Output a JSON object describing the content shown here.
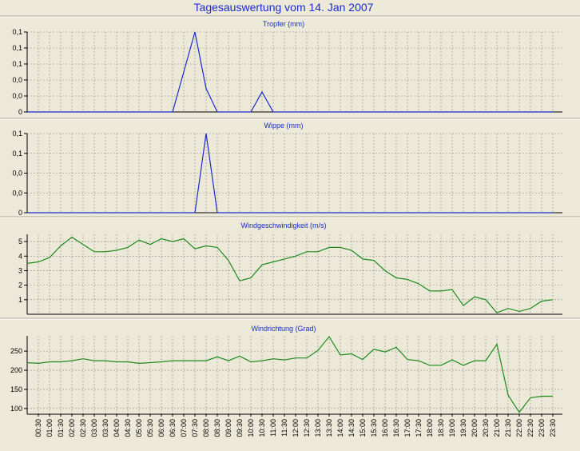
{
  "page": {
    "title": "Tagesauswertung vom 14. Jan 2007"
  },
  "colors": {
    "background": "#ece9d8",
    "title_text": "#1a2ccc",
    "grid": "#8a8a8a",
    "rain_line": "#1a2ccc",
    "wind_line": "#1f8a1f"
  },
  "time_labels": [
    "00:30",
    "01:00",
    "01:30",
    "02:00",
    "02:30",
    "03:00",
    "03:30",
    "04:00",
    "04:30",
    "05:00",
    "05:30",
    "06:00",
    "06:30",
    "07:00",
    "07:30",
    "08:00",
    "08:30",
    "09:00",
    "09:30",
    "10:00",
    "10:30",
    "11:00",
    "11:30",
    "12:00",
    "12:30",
    "13:00",
    "13:30",
    "14:00",
    "14:30",
    "15:00",
    "15:30",
    "16:00",
    "16:30",
    "17:00",
    "17:30",
    "18:00",
    "18:30",
    "19:00",
    "19:30",
    "20:00",
    "20:30",
    "21:00",
    "21:30",
    "22:00",
    "22:30",
    "23:00",
    "23:30"
  ],
  "chart_data": [
    {
      "type": "line",
      "title": "Tropfer (mm)",
      "ytick_labels": [
        "0,1",
        "0,1",
        "0,1",
        "0,0",
        "0,0",
        "0"
      ],
      "ylim": [
        0,
        0.12
      ],
      "grid": true,
      "x": [
        "00:00",
        "00:30",
        "01:00",
        "01:30",
        "02:00",
        "02:30",
        "03:00",
        "03:30",
        "04:00",
        "04:30",
        "05:00",
        "05:30",
        "06:00",
        "06:30",
        "07:00",
        "07:30",
        "08:00",
        "08:30",
        "09:00",
        "09:30",
        "10:00",
        "10:30",
        "11:00",
        "11:30",
        "12:00",
        "12:30",
        "13:00",
        "13:30",
        "14:00",
        "14:30",
        "15:00",
        "15:30",
        "16:00",
        "16:30",
        "17:00",
        "17:30",
        "18:00",
        "18:30",
        "19:00",
        "19:30",
        "20:00",
        "20:30",
        "21:00",
        "21:30",
        "22:00",
        "22:30",
        "23:00",
        "23:30"
      ],
      "series": [
        {
          "values": [
            0,
            0,
            0,
            0,
            0,
            0,
            0,
            0,
            0,
            0,
            0,
            0,
            0,
            0,
            0.06,
            0.12,
            0.035,
            0,
            0,
            0,
            0,
            0.03,
            0,
            0,
            0,
            0,
            0,
            0,
            0,
            0,
            0,
            0,
            0,
            0,
            0,
            0,
            0,
            0,
            0,
            0,
            0,
            0,
            0,
            0,
            0,
            0,
            0,
            0
          ]
        }
      ]
    },
    {
      "type": "line",
      "title": "Wippe (mm)",
      "ytick_labels": [
        "0,1",
        "0,1",
        "0,0",
        "0,0",
        "0"
      ],
      "ylim": [
        0,
        0.1
      ],
      "grid": true,
      "x": [
        "00:00",
        "00:30",
        "01:00",
        "01:30",
        "02:00",
        "02:30",
        "03:00",
        "03:30",
        "04:00",
        "04:30",
        "05:00",
        "05:30",
        "06:00",
        "06:30",
        "07:00",
        "07:30",
        "08:00",
        "08:30",
        "09:00",
        "09:30",
        "10:00",
        "10:30",
        "11:00",
        "11:30",
        "12:00",
        "12:30",
        "13:00",
        "13:30",
        "14:00",
        "14:30",
        "15:00",
        "15:30",
        "16:00",
        "16:30",
        "17:00",
        "17:30",
        "18:00",
        "18:30",
        "19:00",
        "19:30",
        "20:00",
        "20:30",
        "21:00",
        "21:30",
        "22:00",
        "22:30",
        "23:00",
        "23:30"
      ],
      "series": [
        {
          "values": [
            0,
            0,
            0,
            0,
            0,
            0,
            0,
            0,
            0,
            0,
            0,
            0,
            0,
            0,
            0,
            0,
            0.1,
            0,
            0,
            0,
            0,
            0,
            0,
            0,
            0,
            0,
            0,
            0,
            0,
            0,
            0,
            0,
            0,
            0,
            0,
            0,
            0,
            0,
            0,
            0,
            0,
            0,
            0,
            0,
            0,
            0,
            0,
            0
          ]
        }
      ]
    },
    {
      "type": "line",
      "title": "Windgeschwindigkeit (m/s)",
      "yticks": [
        1,
        2,
        3,
        4,
        5
      ],
      "ylim": [
        0,
        5.5
      ],
      "grid": true,
      "x": [
        "00:00",
        "00:30",
        "01:00",
        "01:30",
        "02:00",
        "02:30",
        "03:00",
        "03:30",
        "04:00",
        "04:30",
        "05:00",
        "05:30",
        "06:00",
        "06:30",
        "07:00",
        "07:30",
        "08:00",
        "08:30",
        "09:00",
        "09:30",
        "10:00",
        "10:30",
        "11:00",
        "11:30",
        "12:00",
        "12:30",
        "13:00",
        "13:30",
        "14:00",
        "14:30",
        "15:00",
        "15:30",
        "16:00",
        "16:30",
        "17:00",
        "17:30",
        "18:00",
        "18:30",
        "19:00",
        "19:30",
        "20:00",
        "20:30",
        "21:00",
        "21:30",
        "22:00",
        "22:30",
        "23:00",
        "23:30"
      ],
      "series": [
        {
          "values": [
            3.5,
            3.6,
            3.9,
            4.7,
            5.3,
            4.8,
            4.3,
            4.3,
            4.4,
            4.6,
            5.1,
            4.8,
            5.2,
            5.0,
            5.2,
            4.5,
            4.7,
            4.6,
            3.7,
            2.3,
            2.5,
            3.4,
            3.6,
            3.8,
            4.0,
            4.3,
            4.3,
            4.6,
            4.6,
            4.4,
            3.8,
            3.7,
            3.0,
            2.5,
            2.4,
            2.1,
            1.6,
            1.6,
            1.7,
            0.6,
            1.2,
            1.0,
            0.1,
            0.4,
            0.2,
            0.4,
            0.9,
            1.0
          ]
        }
      ]
    },
    {
      "type": "line",
      "title": "Windrichtung (Grad)",
      "yticks": [
        100,
        150,
        200,
        250
      ],
      "ylim": [
        85,
        290
      ],
      "grid": true,
      "x": [
        "00:00",
        "00:30",
        "01:00",
        "01:30",
        "02:00",
        "02:30",
        "03:00",
        "03:30",
        "04:00",
        "04:30",
        "05:00",
        "05:30",
        "06:00",
        "06:30",
        "07:00",
        "07:30",
        "08:00",
        "08:30",
        "09:00",
        "09:30",
        "10:00",
        "10:30",
        "11:00",
        "11:30",
        "12:00",
        "12:30",
        "13:00",
        "13:30",
        "14:00",
        "14:30",
        "15:00",
        "15:30",
        "16:00",
        "16:30",
        "17:00",
        "17:30",
        "18:00",
        "18:30",
        "19:00",
        "19:30",
        "20:00",
        "20:30",
        "21:00",
        "21:30",
        "22:00",
        "22:30",
        "23:00",
        "23:30"
      ],
      "series": [
        {
          "values": [
            220,
            218,
            222,
            222,
            225,
            230,
            225,
            225,
            222,
            222,
            218,
            220,
            222,
            225,
            225,
            225,
            225,
            235,
            225,
            237,
            222,
            225,
            230,
            227,
            232,
            232,
            252,
            288,
            240,
            243,
            228,
            255,
            248,
            260,
            228,
            225,
            213,
            213,
            227,
            213,
            225,
            225,
            268,
            135,
            90,
            128,
            132,
            132
          ]
        }
      ]
    }
  ]
}
